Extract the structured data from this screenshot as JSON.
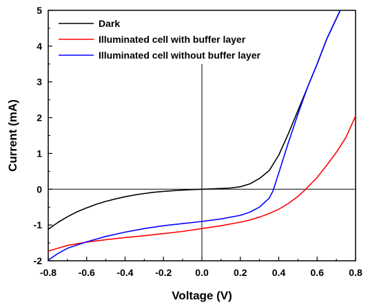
{
  "chart_data": {
    "type": "line",
    "title": "",
    "xlabel": "Voltage (V)",
    "ylabel": "Current (mA)",
    "xlim": [
      -0.8,
      0.8
    ],
    "ylim": [
      -2,
      5
    ],
    "xticks": [
      "-0.8",
      "-0.6",
      "-0.4",
      "-0.2",
      "0.0",
      "0.2",
      "0.4",
      "0.6",
      "0.8"
    ],
    "yticks": [
      "-2",
      "-1",
      "0",
      "1",
      "2",
      "3",
      "4",
      "5"
    ],
    "grid": false,
    "legend_position": "top-left",
    "series": [
      {
        "name": "Dark",
        "color": "#000000",
        "points": [
          [
            -0.8,
            -1.12
          ],
          [
            -0.75,
            -0.93
          ],
          [
            -0.7,
            -0.77
          ],
          [
            -0.65,
            -0.63
          ],
          [
            -0.6,
            -0.52
          ],
          [
            -0.55,
            -0.42
          ],
          [
            -0.5,
            -0.34
          ],
          [
            -0.45,
            -0.27
          ],
          [
            -0.4,
            -0.21
          ],
          [
            -0.35,
            -0.16
          ],
          [
            -0.3,
            -0.12
          ],
          [
            -0.25,
            -0.085
          ],
          [
            -0.2,
            -0.06
          ],
          [
            -0.15,
            -0.04
          ],
          [
            -0.1,
            -0.025
          ],
          [
            -0.05,
            -0.01
          ],
          [
            0.0,
            0.0
          ],
          [
            0.05,
            0.01
          ],
          [
            0.1,
            0.02
          ],
          [
            0.15,
            0.035
          ],
          [
            0.2,
            0.07
          ],
          [
            0.25,
            0.15
          ],
          [
            0.3,
            0.3
          ],
          [
            0.35,
            0.52
          ],
          [
            0.4,
            0.95
          ],
          [
            0.45,
            1.55
          ],
          [
            0.5,
            2.2
          ],
          [
            0.55,
            2.85
          ],
          [
            0.6,
            3.5
          ],
          [
            0.65,
            4.2
          ],
          [
            0.72,
            5.0
          ]
        ]
      },
      {
        "name": "Illuminated cell with buffer layer",
        "color": "#ff0000",
        "points": [
          [
            -0.8,
            -1.73
          ],
          [
            -0.75,
            -1.65
          ],
          [
            -0.7,
            -1.57
          ],
          [
            -0.6,
            -1.48
          ],
          [
            -0.5,
            -1.41
          ],
          [
            -0.4,
            -1.35
          ],
          [
            -0.3,
            -1.3
          ],
          [
            -0.2,
            -1.24
          ],
          [
            -0.1,
            -1.18
          ],
          [
            0.0,
            -1.1
          ],
          [
            0.1,
            -1.02
          ],
          [
            0.2,
            -0.92
          ],
          [
            0.25,
            -0.86
          ],
          [
            0.3,
            -0.78
          ],
          [
            0.35,
            -0.68
          ],
          [
            0.4,
            -0.56
          ],
          [
            0.45,
            -0.4
          ],
          [
            0.5,
            -0.2
          ],
          [
            0.55,
            0.05
          ],
          [
            0.6,
            0.33
          ],
          [
            0.65,
            0.67
          ],
          [
            0.7,
            1.03
          ],
          [
            0.75,
            1.45
          ],
          [
            0.8,
            2.05
          ]
        ]
      },
      {
        "name": "Illuminated cell without buffer layer",
        "color": "#0000ff",
        "points": [
          [
            -0.8,
            -1.98
          ],
          [
            -0.75,
            -1.8
          ],
          [
            -0.7,
            -1.65
          ],
          [
            -0.6,
            -1.47
          ],
          [
            -0.5,
            -1.32
          ],
          [
            -0.4,
            -1.2
          ],
          [
            -0.3,
            -1.1
          ],
          [
            -0.2,
            -1.02
          ],
          [
            -0.1,
            -0.96
          ],
          [
            0.0,
            -0.9
          ],
          [
            0.1,
            -0.83
          ],
          [
            0.2,
            -0.73
          ],
          [
            0.25,
            -0.64
          ],
          [
            0.3,
            -0.5
          ],
          [
            0.35,
            -0.25
          ],
          [
            0.37,
            -0.05
          ],
          [
            0.4,
            0.45
          ],
          [
            0.45,
            1.3
          ],
          [
            0.5,
            2.1
          ],
          [
            0.55,
            2.85
          ],
          [
            0.6,
            3.5
          ],
          [
            0.65,
            4.2
          ],
          [
            0.72,
            5.0
          ]
        ]
      }
    ]
  }
}
